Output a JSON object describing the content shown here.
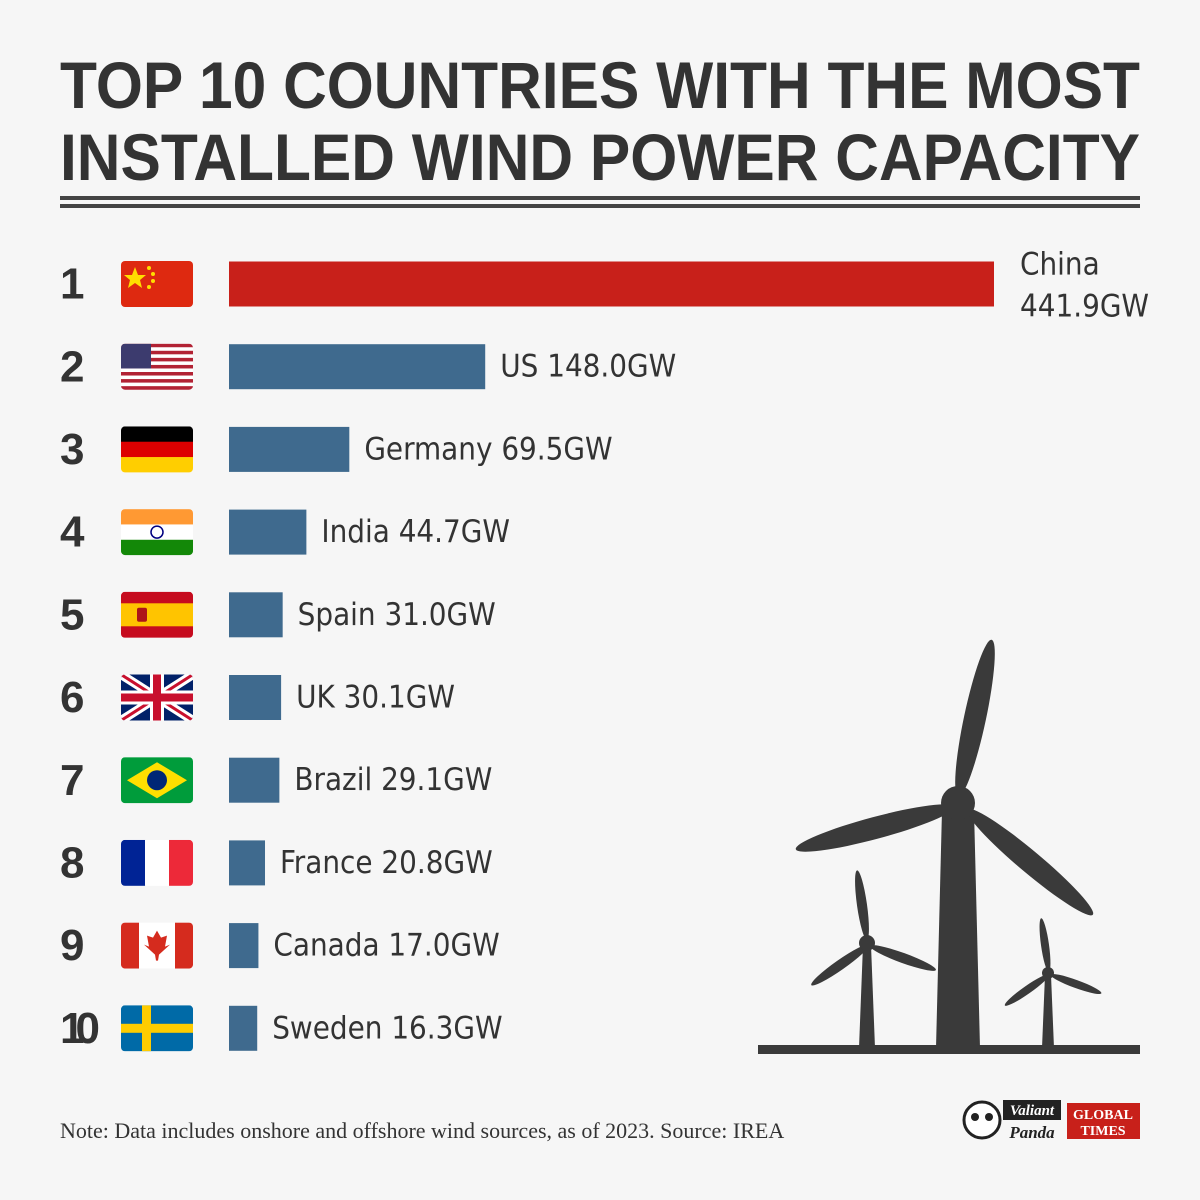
{
  "chart_data": {
    "type": "bar",
    "title_lines": [
      "TOP 10 COUNTRIES WITH THE MOST",
      "INSTALLED WIND POWER CAPACITY"
    ],
    "ranks": [
      "1",
      "2",
      "3",
      "4",
      "5",
      "6",
      "7",
      "8",
      "9",
      "10"
    ],
    "categories": [
      "China",
      "US",
      "Germany",
      "India",
      "Spain",
      "UK",
      "Brazil",
      "France",
      "Canada",
      "Sweden"
    ],
    "values": [
      441.9,
      148.0,
      69.5,
      44.7,
      31.0,
      30.1,
      29.1,
      20.8,
      17.0,
      16.3
    ],
    "value_labels": [
      "441.9GW",
      "148.0GW",
      "69.5GW",
      "44.7GW",
      "31.0GW",
      "30.1GW",
      "29.1GW",
      "20.8GW",
      "17.0GW",
      "16.3GW"
    ],
    "colors": [
      "#c8201a",
      "#3f6a8e",
      "#3f6a8e",
      "#3f6a8e",
      "#3f6a8e",
      "#3f6a8e",
      "#3f6a8e",
      "#3f6a8e",
      "#3f6a8e",
      "#3f6a8e"
    ],
    "note": "Note: Data includes onshore and offshore wind sources, as of 2023.  Source: IREA",
    "logos": [
      "Valiant",
      "Panda",
      "GLOBAL",
      "TIMES"
    ]
  }
}
